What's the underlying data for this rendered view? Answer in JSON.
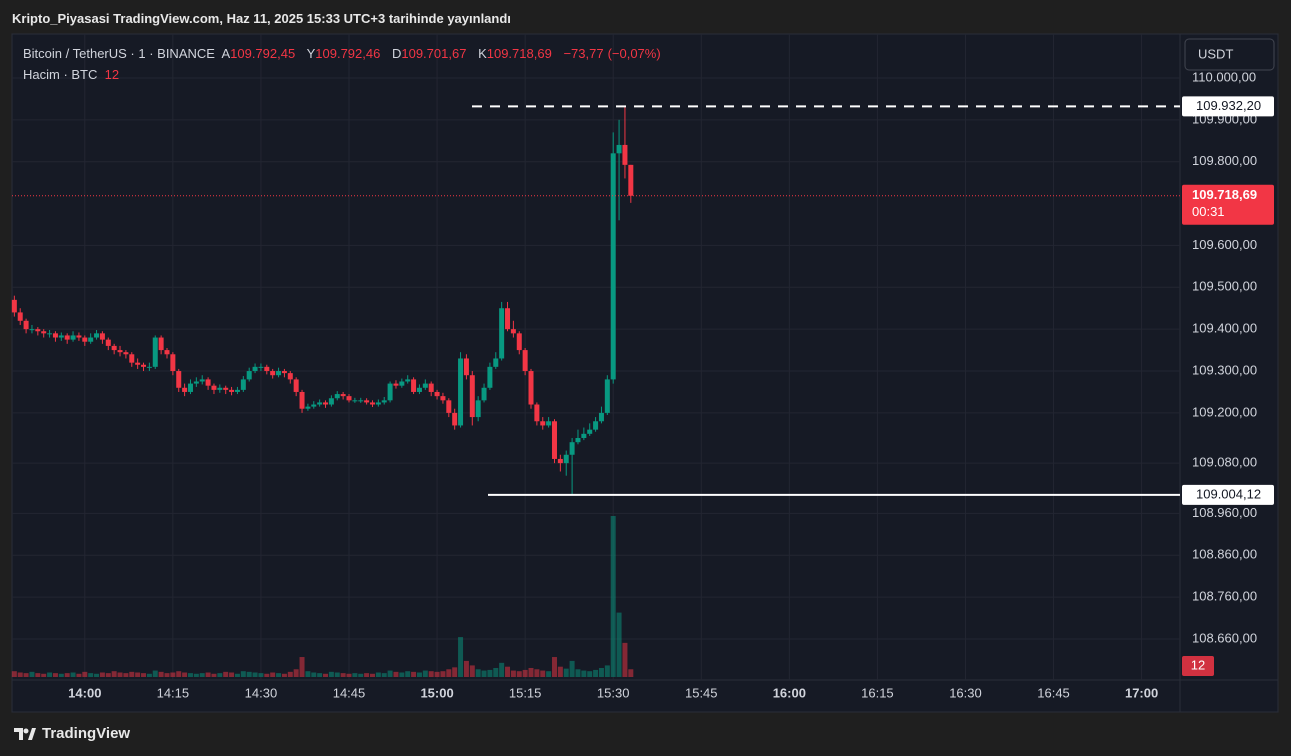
{
  "header": {
    "published": "Kripto_Piyasasi TradingView.com, Haz 11, 2025 15:33 UTC+3 tarihinde yayınlandı"
  },
  "chart_data": {
    "type": "candlestick",
    "symbol": "Bitcoin / TetherUS · 1 · BINANCE",
    "legend": [
      {
        "key": "A",
        "value": 109792.45,
        "label": "109.792,45"
      },
      {
        "key": "Y",
        "value": 109792.46,
        "label": "109.792,46"
      },
      {
        "key": "D",
        "value": 109701.67,
        "label": "109.701,67"
      },
      {
        "key": "K",
        "value": 109718.69,
        "label": "109.718,69"
      }
    ],
    "change": {
      "value": -73.77,
      "label": "−73,77"
    },
    "change_pct": {
      "value": -0.07,
      "label": "(−0,07%)"
    },
    "volume_title": "Hacim · BTC",
    "currency": "USDT",
    "up_color": "#089981",
    "down_color": "#f23645",
    "grid": true,
    "x": [
      828,
      829,
      830,
      831,
      832,
      833,
      834,
      835,
      836,
      837,
      838,
      839,
      840,
      841,
      842,
      843,
      844,
      845,
      846,
      847,
      848,
      849,
      850,
      851,
      852,
      853,
      854,
      855,
      856,
      857,
      858,
      859,
      860,
      861,
      862,
      863,
      864,
      865,
      866,
      867,
      868,
      869,
      870,
      871,
      872,
      873,
      874,
      875,
      876,
      877,
      878,
      879,
      880,
      881,
      882,
      883,
      884,
      885,
      886,
      887,
      888,
      889,
      890,
      891,
      892,
      893,
      894,
      895,
      896,
      897,
      898,
      899,
      900,
      901,
      902,
      903,
      904,
      905,
      906,
      907,
      908,
      909,
      910,
      911,
      912,
      913,
      914,
      915,
      916,
      917,
      918,
      919,
      920,
      921,
      922,
      923,
      924,
      925,
      926,
      927,
      928,
      929,
      930,
      931,
      932,
      933
    ],
    "open": [
      109470,
      109440,
      109420,
      109400,
      109400,
      109395,
      109390,
      109390,
      109380,
      109385,
      109375,
      109385,
      109380,
      109370,
      109380,
      109390,
      109375,
      109360,
      109350,
      109345,
      109340,
      109320,
      109315,
      109310,
      109310,
      109380,
      109350,
      109340,
      109300,
      109260,
      109250,
      109270,
      109275,
      109280,
      109265,
      109255,
      109260,
      109255,
      109250,
      109255,
      109280,
      109300,
      109310,
      109310,
      109300,
      109290,
      109300,
      109295,
      109280,
      109250,
      109210,
      109215,
      109220,
      109225,
      109220,
      109235,
      109245,
      109240,
      109230,
      109230,
      109230,
      109225,
      109220,
      109225,
      109230,
      109270,
      109265,
      109275,
      109280,
      109250,
      109260,
      109270,
      109250,
      109240,
      109230,
      109200,
      109170,
      109330,
      109290,
      109190,
      109230,
      109260,
      109310,
      109330,
      109450,
      109400,
      109390,
      109350,
      109300,
      109220,
      109180,
      109170,
      109180,
      109090,
      109080,
      109100,
      109130,
      109140,
      109150,
      109160,
      109180,
      109200,
      109280,
      109820,
      109840,
      109792.45
    ],
    "high": [
      109480,
      109450,
      109425,
      109410,
      109405,
      109400,
      109398,
      109395,
      109392,
      109390,
      109395,
      109392,
      109385,
      109390,
      109398,
      109395,
      109380,
      109365,
      109360,
      109350,
      109345,
      109330,
      109320,
      109320,
      109385,
      109385,
      109355,
      109345,
      109305,
      109270,
      109280,
      109285,
      109290,
      109285,
      109270,
      109268,
      109265,
      109262,
      109262,
      109288,
      109308,
      109318,
      109318,
      109315,
      109305,
      109308,
      109305,
      109300,
      109285,
      109255,
      109222,
      109228,
      109232,
      109230,
      109242,
      109252,
      109250,
      109245,
      109236,
      109236,
      109235,
      109230,
      109232,
      109238,
      109275,
      109278,
      109282,
      109290,
      109285,
      109268,
      109280,
      109275,
      109255,
      109248,
      109235,
      109210,
      109345,
      109340,
      109300,
      109240,
      109270,
      109320,
      109345,
      109465,
      109465,
      109420,
      109395,
      109355,
      109305,
      109225,
      109190,
      109190,
      109185,
      109100,
      109110,
      109140,
      109160,
      109165,
      109175,
      109190,
      109215,
      109290,
      109870,
      109900,
      109932.2,
      109792.46
    ],
    "low": [
      109430,
      109410,
      109390,
      109390,
      109385,
      109380,
      109380,
      109370,
      109372,
      109365,
      109370,
      109372,
      109360,
      109365,
      109375,
      109365,
      109350,
      109340,
      109335,
      109330,
      109310,
      109305,
      109300,
      109300,
      109305,
      109340,
      109330,
      109290,
      109250,
      109240,
      109245,
      109262,
      109268,
      109255,
      109245,
      109248,
      109245,
      109242,
      109245,
      109250,
      109275,
      109295,
      109300,
      109292,
      109282,
      109285,
      109285,
      109270,
      109240,
      109200,
      109205,
      109210,
      109215,
      109212,
      109215,
      109230,
      109232,
      109225,
      109224,
      109224,
      109220,
      109214,
      109215,
      109220,
      109225,
      109258,
      109260,
      109270,
      109245,
      109245,
      109255,
      109240,
      109232,
      109222,
      109190,
      109160,
      109165,
      109280,
      109170,
      109180,
      109225,
      109255,
      109305,
      109325,
      109395,
      109380,
      109340,
      109290,
      109210,
      109170,
      109160,
      109165,
      109080,
      109060,
      109050,
      109004.12,
      109125,
      109135,
      109145,
      109155,
      109175,
      109195,
      109270,
      109660,
      109760,
      109701.67
    ],
    "close": [
      109440,
      109420,
      109400,
      109400,
      109395,
      109390,
      109390,
      109380,
      109385,
      109375,
      109385,
      109380,
      109370,
      109380,
      109390,
      109375,
      109360,
      109350,
      109345,
      109340,
      109320,
      109315,
      109310,
      109310,
      109380,
      109350,
      109340,
      109300,
      109260,
      109250,
      109270,
      109275,
      109280,
      109265,
      109255,
      109260,
      109255,
      109250,
      109255,
      109280,
      109300,
      109310,
      109310,
      109300,
      109290,
      109300,
      109295,
      109280,
      109250,
      109210,
      109215,
      109220,
      109225,
      109220,
      109235,
      109245,
      109240,
      109230,
      109230,
      109230,
      109225,
      109220,
      109225,
      109230,
      109270,
      109265,
      109275,
      109280,
      109250,
      109260,
      109270,
      109250,
      109240,
      109230,
      109200,
      109170,
      109330,
      109290,
      109190,
      109230,
      109260,
      109310,
      109330,
      109450,
      109400,
      109390,
      109350,
      109300,
      109220,
      109180,
      109170,
      109180,
      109090,
      109080,
      109100,
      109130,
      109140,
      109150,
      109160,
      109180,
      109200,
      109280,
      109820,
      109840,
      109792.45,
      109718.69
    ],
    "volume": [
      9,
      7,
      6,
      8,
      6,
      5,
      7,
      6,
      5,
      6,
      7,
      5,
      8,
      6,
      5,
      7,
      6,
      9,
      7,
      6,
      8,
      7,
      6,
      5,
      10,
      8,
      6,
      7,
      9,
      7,
      6,
      5,
      6,
      7,
      5,
      6,
      8,
      7,
      5,
      9,
      8,
      7,
      6,
      5,
      7,
      6,
      5,
      8,
      12,
      31,
      9,
      7,
      6,
      5,
      8,
      7,
      6,
      5,
      6,
      5,
      6,
      5,
      7,
      6,
      10,
      8,
      7,
      9,
      8,
      7,
      10,
      9,
      8,
      9,
      12,
      15,
      62,
      25,
      18,
      12,
      10,
      11,
      14,
      22,
      16,
      10,
      9,
      11,
      14,
      12,
      10,
      9,
      31,
      16,
      13,
      25,
      12,
      10,
      9,
      11,
      14,
      18,
      250,
      100,
      53,
      12
    ],
    "xlim": [
      827.6,
      1026.2
    ],
    "xticks": [
      {
        "value": 840,
        "label": "14:00"
      },
      {
        "value": 855,
        "label": "14:15"
      },
      {
        "value": 870,
        "label": "14:30"
      },
      {
        "value": 885,
        "label": "14:45"
      },
      {
        "value": 900,
        "label": "15:00"
      },
      {
        "value": 915,
        "label": "15:15"
      },
      {
        "value": 930,
        "label": "15:30"
      },
      {
        "value": 945,
        "label": "15:45"
      },
      {
        "value": 960,
        "label": "16:00"
      },
      {
        "value": 975,
        "label": "16:15"
      },
      {
        "value": 990,
        "label": "16:30"
      },
      {
        "value": 1005,
        "label": "16:45"
      },
      {
        "value": 1020,
        "label": "17:00"
      }
    ],
    "ylim": [
      108562,
      110105
    ],
    "yticks": [
      {
        "value": 110000,
        "label": "110.000,00"
      },
      {
        "value": 109900,
        "label": "109.900,00"
      },
      {
        "value": 109800,
        "label": "109.800,00"
      },
      {
        "value": 109600,
        "label": "109.600,00"
      },
      {
        "value": 109500,
        "label": "109.500,00"
      },
      {
        "value": 109400,
        "label": "109.400,00"
      },
      {
        "value": 109300,
        "label": "109.300,00"
      },
      {
        "value": 109200,
        "label": "109.200,00"
      },
      {
        "value": 109080,
        "label": "109.080,00"
      },
      {
        "value": 108960,
        "label": "108.960,00"
      },
      {
        "value": 108860,
        "label": "108.860,00"
      },
      {
        "value": 108760,
        "label": "108.760,00"
      },
      {
        "value": 108660,
        "label": "108.660,00"
      }
    ],
    "high_line": {
      "value": 109932.2,
      "label": "109.932,20"
    },
    "low_line": {
      "value": 109004.12,
      "label": "109.004,12"
    },
    "last_price": {
      "value": 109718.69,
      "label": "109.718,69"
    },
    "countdown": "00:31"
  },
  "footer": {
    "brand": "TradingView"
  }
}
